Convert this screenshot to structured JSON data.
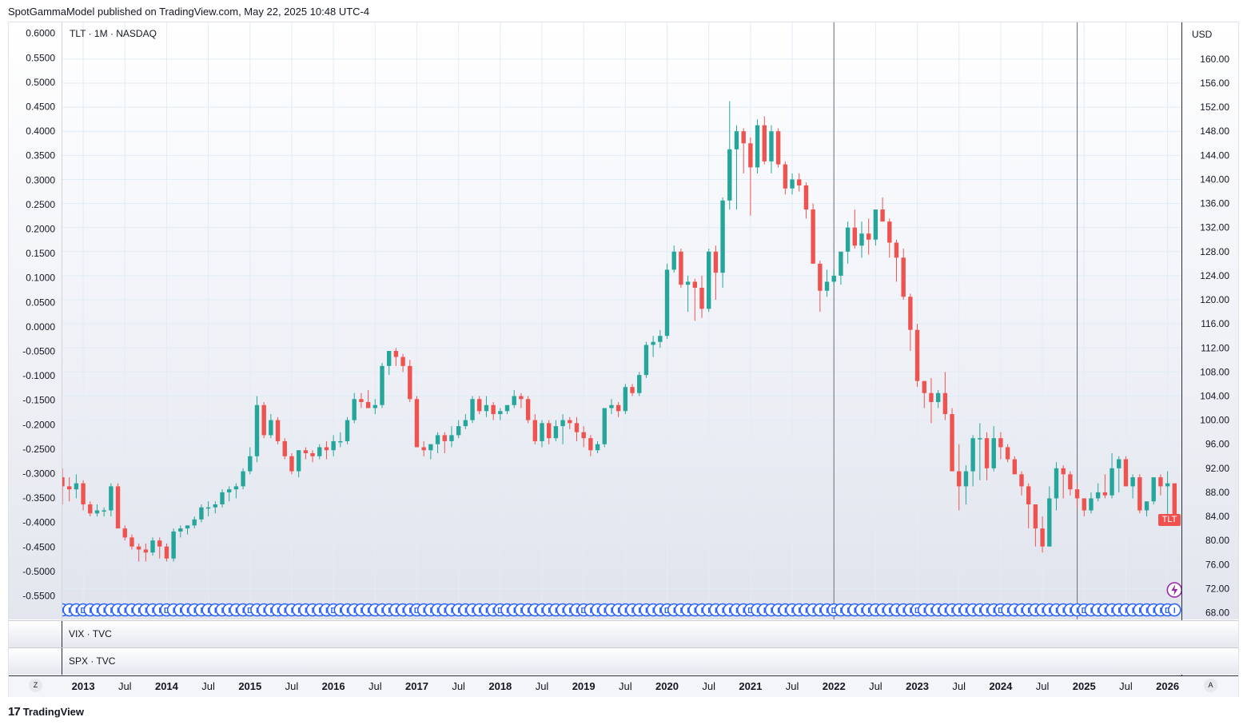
{
  "header": {
    "published_by": "SpotGammaModel published on TradingView.com, May 22, 2025 10:48 UTC-4"
  },
  "main_pane": {
    "title": "TLT · 1M · NASDAQ",
    "currency": "USD",
    "price_badge": "TLT"
  },
  "sub_panes": [
    {
      "label": "VIX · TVC"
    },
    {
      "label": "SPX · TVC"
    }
  ],
  "time_axis": {
    "left_button": "Z",
    "right_button": "A",
    "labels": [
      "2013",
      "Jul",
      "2014",
      "Jul",
      "2015",
      "Jul",
      "2016",
      "Jul",
      "2017",
      "Jul",
      "2018",
      "Jul",
      "2019",
      "Jul",
      "2020",
      "Jul",
      "2021",
      "Jul",
      "2022",
      "Jul",
      "2023",
      "Jul",
      "2024",
      "Jul",
      "2025",
      "Jul",
      "2026"
    ]
  },
  "footer": {
    "brand": "TradingView"
  },
  "colors": {
    "up": "#26a69a",
    "down": "#ef5350",
    "marker": "#2962ff",
    "grid": "#e0ecf6"
  },
  "chart_data": {
    "type": "candlestick",
    "symbol": "TLT",
    "interval": "1M",
    "exchange": "NASDAQ",
    "right_axis": {
      "ticks": [
        "160.00",
        "156.00",
        "152.00",
        "148.00",
        "144.00",
        "140.00",
        "136.00",
        "132.00",
        "128.00",
        "124.00",
        "120.00",
        "116.00",
        "112.00",
        "108.00",
        "104.00",
        "100.00",
        "96.00",
        "92.00",
        "88.00",
        "84.00",
        "80.00",
        "76.00",
        "72.00",
        "68.00"
      ]
    },
    "left_axis": {
      "ticks": [
        "0.6000",
        "0.5500",
        "0.5000",
        "0.4500",
        "0.4000",
        "0.3500",
        "0.3000",
        "0.2500",
        "0.2000",
        "0.1500",
        "0.1000",
        "0.0500",
        "0.0000",
        "-0.0500",
        "-0.1000",
        "-0.1500",
        "-0.2000",
        "-0.2500",
        "-0.3000",
        "-0.3500",
        "-0.4000",
        "-0.4500",
        "-0.5000",
        "-0.5500"
      ]
    },
    "x_start": "2012-10",
    "x_end": "2026-03",
    "ohlc_start": "2012-10",
    "ohlc": [
      [
        90.5,
        92,
        86,
        89
      ],
      [
        89,
        90.5,
        86.5,
        88.5
      ],
      [
        88.5,
        91,
        87,
        89.5
      ],
      [
        89.5,
        90,
        85,
        86
      ],
      [
        86,
        86.5,
        84,
        84.5
      ],
      [
        84.5,
        86,
        84,
        85
      ],
      [
        85,
        85.5,
        84,
        85
      ],
      [
        85,
        89.5,
        84,
        89
      ],
      [
        89,
        89.5,
        82,
        82
      ],
      [
        82,
        82.5,
        80,
        80.5
      ],
      [
        80.5,
        81,
        78.5,
        79
      ],
      [
        79,
        79.5,
        76.5,
        78.5
      ],
      [
        78.5,
        79.5,
        76.5,
        78
      ],
      [
        78,
        80.5,
        77.5,
        80
      ],
      [
        80,
        80.5,
        77,
        79
      ],
      [
        79,
        79.5,
        76.5,
        77
      ],
      [
        77,
        82,
        76.5,
        81.5
      ],
      [
        81.5,
        82.5,
        80.5,
        82
      ],
      [
        82,
        82.5,
        81,
        82.5
      ],
      [
        82.5,
        84,
        82,
        83.5
      ],
      [
        83.5,
        86,
        83,
        85.5
      ],
      [
        85.5,
        86.5,
        84,
        85.5
      ],
      [
        85.5,
        86.5,
        84.5,
        86
      ],
      [
        86,
        88.5,
        85.5,
        88
      ],
      [
        88,
        89,
        86.5,
        88.5
      ],
      [
        88.5,
        89.5,
        87,
        89
      ],
      [
        89,
        92,
        88.5,
        91.5
      ],
      [
        91.5,
        95.5,
        91,
        94
      ],
      [
        94,
        104,
        93,
        102.5
      ],
      [
        102.5,
        103,
        97,
        97.5
      ],
      [
        97.5,
        101,
        97,
        100
      ],
      [
        100,
        100.5,
        96,
        96.5
      ],
      [
        96.5,
        97,
        93.5,
        94
      ],
      [
        94,
        94.5,
        91,
        91.5
      ],
      [
        91.5,
        95,
        90.5,
        95
      ],
      [
        95,
        95.5,
        93.5,
        94.5
      ],
      [
        94.5,
        95,
        93,
        94
      ],
      [
        94,
        96,
        93.5,
        95.5
      ],
      [
        95.5,
        96.5,
        93.5,
        95
      ],
      [
        95,
        97.5,
        94,
        96.5
      ],
      [
        96.5,
        98,
        95.5,
        96.5
      ],
      [
        96.5,
        100.5,
        96,
        100
      ],
      [
        100,
        104.5,
        99.5,
        103.5
      ],
      [
        103.5,
        104.5,
        102,
        103
      ],
      [
        103,
        105,
        102,
        102
      ],
      [
        102,
        103.5,
        101,
        102.5
      ],
      [
        102.5,
        109.5,
        102,
        109
      ],
      [
        109,
        111.5,
        107.5,
        111.5
      ],
      [
        111.5,
        112,
        109,
        110.5
      ],
      [
        110.5,
        111,
        108,
        109
      ],
      [
        109,
        110,
        103,
        103.5
      ],
      [
        103.5,
        104,
        95.5,
        95.5
      ],
      [
        95.5,
        96.5,
        94,
        95
      ],
      [
        95,
        96,
        93.5,
        96
      ],
      [
        96,
        98,
        94.5,
        97.5
      ],
      [
        97.5,
        98,
        94.5,
        96.5
      ],
      [
        96.5,
        99,
        95.5,
        97.5
      ],
      [
        97.5,
        100,
        97,
        99
      ],
      [
        99,
        101,
        98.5,
        100
      ],
      [
        100,
        104,
        99.5,
        103.5
      ],
      [
        103.5,
        104,
        101,
        101.5
      ],
      [
        101.5,
        104,
        100.5,
        102.5
      ],
      [
        102.5,
        103,
        100,
        101
      ],
      [
        101,
        102,
        100,
        101.5
      ],
      [
        101.5,
        102.5,
        101,
        102.5
      ],
      [
        102.5,
        105,
        102,
        104
      ],
      [
        104,
        104.5,
        102,
        103.5
      ],
      [
        103.5,
        104,
        99.5,
        100
      ],
      [
        100,
        101,
        96,
        96.5
      ],
      [
        96.5,
        100,
        95.5,
        99.5
      ],
      [
        99.5,
        100,
        96,
        97
      ],
      [
        97,
        100,
        96.5,
        99
      ],
      [
        99,
        101,
        96,
        100
      ],
      [
        100,
        100.5,
        98.5,
        99.5
      ],
      [
        99.5,
        100.5,
        96.5,
        98
      ],
      [
        98,
        99,
        95.5,
        97
      ],
      [
        97,
        97.5,
        94,
        95
      ],
      [
        95,
        96.5,
        94.5,
        96
      ],
      [
        96,
        102,
        95.5,
        102
      ],
      [
        102,
        103.5,
        101,
        102.5
      ],
      [
        102.5,
        103,
        100.5,
        101.5
      ],
      [
        101.5,
        106,
        101,
        105.5
      ],
      [
        105.5,
        106,
        104,
        104.5
      ],
      [
        104.5,
        108,
        104,
        107.5
      ],
      [
        107.5,
        113,
        107,
        112.5
      ],
      [
        112.5,
        114,
        110.5,
        113
      ],
      [
        113,
        115,
        112,
        114
      ],
      [
        114,
        126,
        113.5,
        125
      ],
      [
        125,
        129,
        124.5,
        128
      ],
      [
        128,
        128.5,
        122,
        122.5
      ],
      [
        122.5,
        124,
        118,
        123
      ],
      [
        123,
        123.5,
        116.5,
        122
      ],
      [
        122,
        124,
        117,
        118.5
      ],
      [
        118.5,
        128.5,
        118,
        128
      ],
      [
        128,
        129,
        120,
        124.5
      ],
      [
        124.5,
        137,
        122,
        136.5
      ],
      [
        136.5,
        153,
        135,
        145
      ],
      [
        145,
        149,
        135,
        148
      ],
      [
        148,
        148.5,
        141,
        146
      ],
      [
        146,
        147,
        134,
        142
      ],
      [
        142,
        150,
        141,
        149
      ],
      [
        149,
        150.5,
        142.5,
        143
      ],
      [
        143,
        149,
        141,
        148
      ],
      [
        148,
        148.5,
        142,
        142.5
      ],
      [
        142.5,
        143,
        137.5,
        138.5
      ],
      [
        138.5,
        141,
        137.5,
        140
      ],
      [
        140,
        141,
        138,
        139
      ],
      [
        139,
        139.5,
        133.5,
        135
      ],
      [
        135,
        136,
        126,
        126
      ],
      [
        126,
        126.5,
        118,
        121.5
      ],
      [
        121.5,
        125,
        120.5,
        123
      ],
      [
        123,
        125,
        122.5,
        124
      ],
      [
        124,
        128,
        122.5,
        128
      ],
      [
        128,
        133,
        126,
        132
      ],
      [
        132,
        135,
        128.5,
        129
      ],
      [
        129,
        133,
        127,
        131
      ],
      [
        131,
        133.5,
        127.5,
        130
      ],
      [
        130,
        135,
        129,
        135
      ],
      [
        135,
        137,
        133,
        133
      ],
      [
        133,
        133.5,
        127,
        129.5
      ],
      [
        129.5,
        130,
        123,
        127
      ],
      [
        127,
        128.5,
        120,
        120.5
      ],
      [
        120.5,
        121,
        111.5,
        115
      ],
      [
        115,
        116,
        105.5,
        106.5
      ],
      [
        106.5,
        106,
        102,
        104.5
      ],
      [
        104.5,
        107,
        99.5,
        103
      ],
      [
        103,
        105,
        102,
        104.5
      ],
      [
        104.5,
        108,
        100,
        101
      ],
      [
        101,
        102,
        92,
        91.5
      ],
      [
        91.5,
        96,
        85,
        89
      ],
      [
        89,
        92.5,
        86,
        91.5
      ],
      [
        91.5,
        97.5,
        89,
        97
      ],
      [
        97,
        99.5,
        90,
        97
      ],
      [
        97,
        98,
        90,
        92
      ],
      [
        92,
        99,
        91.5,
        97
      ],
      [
        97,
        98,
        93.5,
        95.5
      ],
      [
        95.5,
        96,
        93,
        93.5
      ],
      [
        93.5,
        94,
        91,
        91
      ],
      [
        91,
        91.5,
        87.5,
        89
      ],
      [
        89,
        89.5,
        82,
        86
      ],
      [
        86,
        86,
        79,
        82
      ],
      [
        82,
        84,
        78,
        79
      ],
      [
        79,
        89,
        79,
        87
      ],
      [
        87,
        93,
        85,
        92
      ],
      [
        92,
        92.5,
        87,
        91
      ],
      [
        91,
        91.5,
        87.5,
        88.5
      ],
      [
        88.5,
        89.5,
        85.5,
        87
      ],
      [
        87,
        87,
        84,
        85
      ],
      [
        85,
        88,
        84.5,
        87
      ],
      [
        87,
        89.5,
        86.5,
        88
      ],
      [
        88,
        91,
        87,
        87.5
      ],
      [
        87.5,
        94.5,
        87,
        92
      ],
      [
        92,
        94,
        88,
        93.5
      ],
      [
        93.5,
        94,
        89,
        89
      ],
      [
        89,
        91,
        87,
        90.5
      ],
      [
        90.5,
        91,
        84.5,
        85
      ],
      [
        85,
        86.5,
        84,
        86.5
      ],
      [
        86.5,
        90.5,
        86,
        90.5
      ],
      [
        90.5,
        91,
        87.5,
        89
      ],
      [
        89,
        91.5,
        84,
        89.5
      ],
      [
        89.5,
        89,
        84,
        84
      ]
    ],
    "vertical_markers": [
      "2022-01",
      "2024-12"
    ],
    "current_price_label": "TLT"
  }
}
